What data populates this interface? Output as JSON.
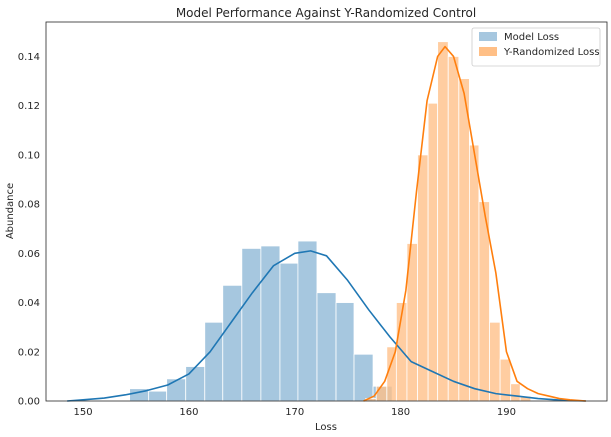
{
  "chart_data": {
    "type": "bar",
    "title": "Model Performance Against Y-Randomized Control",
    "xlabel": "Loss",
    "ylabel": "Abundance",
    "xlim": [
      146.5,
      199.5
    ],
    "ylim": [
      0,
      0.154
    ],
    "xticks": [
      150,
      160,
      170,
      180,
      190
    ],
    "yticks": [
      0.0,
      0.02,
      0.04,
      0.06,
      0.08,
      0.1,
      0.12,
      0.14
    ],
    "ytick_labels": [
      "0.00",
      "0.02",
      "0.04",
      "0.06",
      "0.08",
      "0.10",
      "0.12",
      "0.14"
    ],
    "grid": false,
    "legend_position": "top-right",
    "series": [
      {
        "name": "Model Loss",
        "histogram_color": "#a6c7df",
        "kde_color": "#1f77b4",
        "bin_edges": [
          154.4,
          156.2,
          157.9,
          159.7,
          161.5,
          163.2,
          165.0,
          166.8,
          168.6,
          170.3,
          172.1,
          173.9,
          175.6,
          177.4,
          179.2
        ],
        "counts": [
          0.005,
          0.004,
          0.009,
          0.014,
          0.032,
          0.047,
          0.062,
          0.063,
          0.056,
          0.065,
          0.044,
          0.04,
          0.019,
          0.006
        ],
        "kde_x": [
          148.5,
          150,
          152,
          154,
          156,
          158,
          160,
          162,
          164,
          166,
          168,
          170,
          171.5,
          173,
          175,
          177,
          179,
          181,
          183,
          185,
          187,
          189,
          191,
          193,
          195,
          197.5
        ],
        "kde_y": [
          0.0,
          0.0005,
          0.0012,
          0.0025,
          0.0042,
          0.0065,
          0.011,
          0.02,
          0.032,
          0.044,
          0.055,
          0.06,
          0.061,
          0.059,
          0.049,
          0.037,
          0.026,
          0.016,
          0.012,
          0.008,
          0.005,
          0.003,
          0.002,
          0.001,
          0.0004,
          0.0
        ]
      },
      {
        "name": "Y-Randomized Loss",
        "histogram_color": "#ffbf86",
        "kde_color": "#ff7f0e",
        "bin_edges": [
          176.7,
          177.7,
          178.7,
          179.6,
          180.6,
          181.6,
          182.6,
          183.5,
          184.5,
          185.5,
          186.5,
          187.4,
          188.4,
          189.4,
          190.4,
          191.3,
          192.3
        ],
        "counts": [
          0.001,
          0.006,
          0.022,
          0.04,
          0.064,
          0.1,
          0.121,
          0.146,
          0.14,
          0.131,
          0.104,
          0.081,
          0.032,
          0.017,
          0.007,
          0.002
        ],
        "kde_x": [
          176.5,
          177.5,
          178.5,
          179.5,
          180.5,
          181.5,
          182.5,
          183.5,
          184.2,
          185,
          186,
          187,
          188,
          189,
          190,
          191,
          192,
          193,
          194,
          195,
          196,
          197.5
        ],
        "kde_y": [
          0.0,
          0.002,
          0.008,
          0.02,
          0.045,
          0.085,
          0.122,
          0.14,
          0.144,
          0.14,
          0.125,
          0.1,
          0.075,
          0.052,
          0.02,
          0.008,
          0.005,
          0.003,
          0.002,
          0.001,
          0.0005,
          0.0
        ]
      }
    ]
  }
}
